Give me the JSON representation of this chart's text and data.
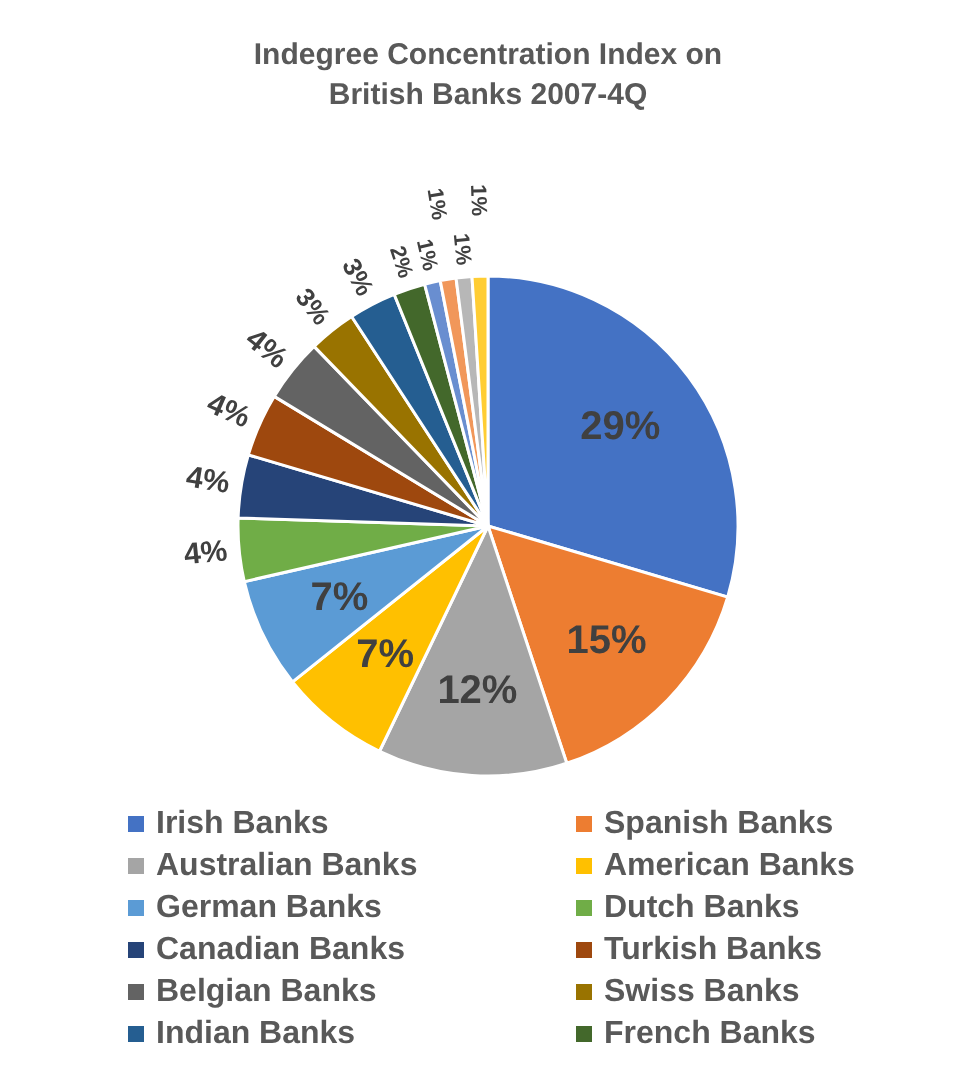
{
  "chart_data": {
    "type": "pie",
    "title": "Indegree Concentration Index on British Banks 2007-4Q",
    "categories": [
      "Irish Banks",
      "Spanish Banks",
      "Australian Banks",
      "American Banks",
      "German Banks",
      "Dutch Banks",
      "Canadian Banks",
      "Turkish Banks",
      "Belgian Banks",
      "Swiss Banks",
      "Indian Banks",
      "French Banks",
      null,
      null,
      null,
      null
    ],
    "values": [
      29,
      15,
      12,
      7,
      7,
      4,
      4,
      4,
      4,
      3,
      3,
      2,
      1,
      1,
      1,
      1
    ],
    "colors": [
      "#4472c4",
      "#ed7d31",
      "#a5a5a5",
      "#ffc000",
      "#5b9bd5",
      "#70ad47",
      "#264478",
      "#9e480e",
      "#636363",
      "#997300",
      "#255e91",
      "#43682b",
      "#698ed0",
      "#f1975a",
      "#b7b7b7",
      "#ffcd33"
    ],
    "value_labels": [
      "29%",
      "15%",
      "12%",
      "7%",
      "7%",
      "4%",
      "4%",
      "4%",
      "4%",
      "3%",
      "3%",
      "2%",
      "1%",
      "1%",
      "1%",
      "1%"
    ],
    "legend": "bottom"
  }
}
